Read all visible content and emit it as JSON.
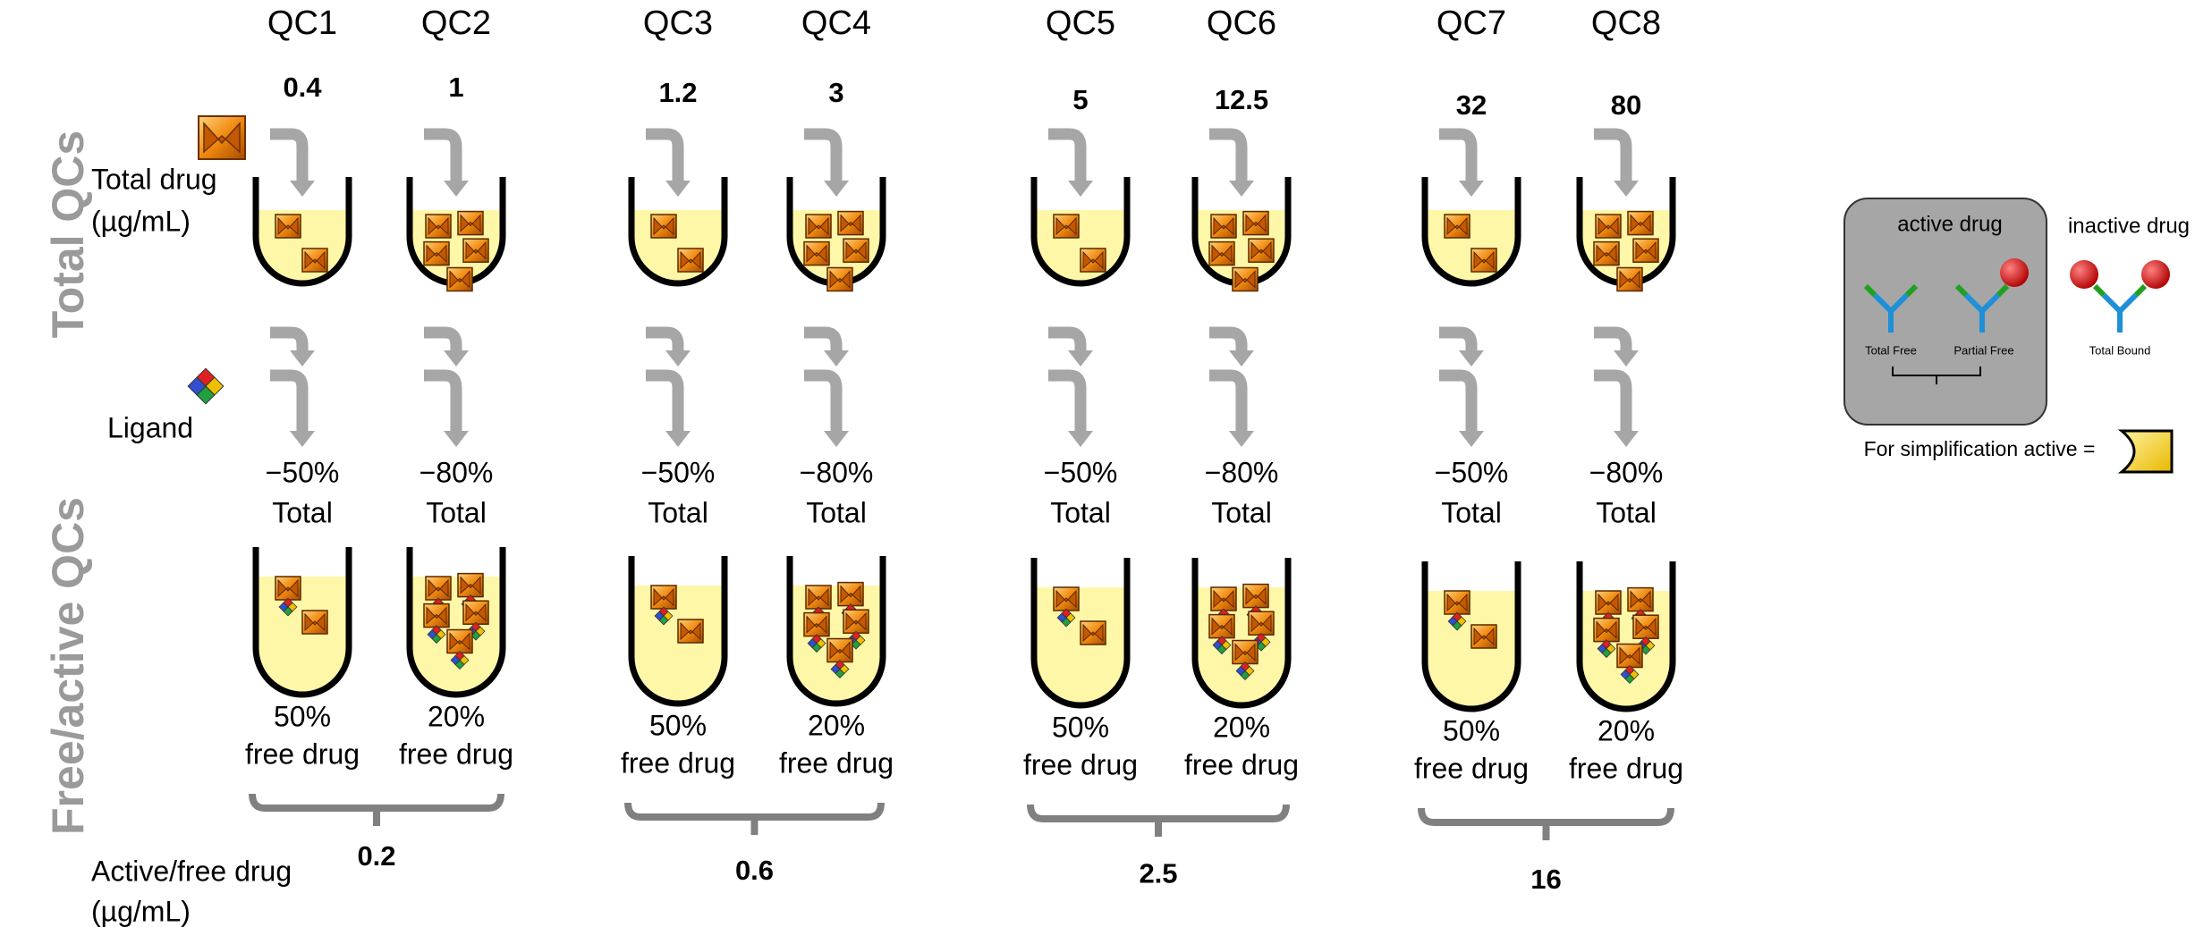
{
  "side_labels": {
    "total": "Total QCs",
    "free": "Free/active QCs"
  },
  "row_labels": {
    "total_drug": [
      "Total drug",
      "(µg/mL)"
    ],
    "ligand": "Ligand",
    "active_drug": [
      "Active/free drug",
      "(µg/mL)"
    ]
  },
  "qcs": [
    {
      "name": "QC1",
      "total": 0.4,
      "reduction": "−50%",
      "reduction_label": "Total",
      "free": "50%",
      "free_label": "free drug"
    },
    {
      "name": "QC2",
      "total": 1,
      "reduction": "−80%",
      "reduction_label": "Total",
      "free": "20%",
      "free_label": "free drug"
    },
    {
      "name": "QC3",
      "total": 1.2,
      "reduction": "−50%",
      "reduction_label": "Total",
      "free": "50%",
      "free_label": "free drug"
    },
    {
      "name": "QC4",
      "total": 3,
      "reduction": "−80%",
      "reduction_label": "Total",
      "free": "20%",
      "free_label": "free drug"
    },
    {
      "name": "QC5",
      "total": 5,
      "reduction": "−50%",
      "reduction_label": "Total",
      "free": "50%",
      "free_label": "free drug"
    },
    {
      "name": "QC6",
      "total": 12.5,
      "reduction": "−80%",
      "reduction_label": "Total",
      "free": "20%",
      "free_label": "free drug"
    },
    {
      "name": "QC7",
      "total": 32,
      "reduction": "−50%",
      "reduction_label": "Total",
      "free": "50%",
      "free_label": "free drug"
    },
    {
      "name": "QC8",
      "total": 80,
      "reduction": "−80%",
      "reduction_label": "Total",
      "free": "20%",
      "free_label": "free drug"
    }
  ],
  "pairs": [
    {
      "active": 0.2
    },
    {
      "active": 0.6
    },
    {
      "active": 2.5
    },
    {
      "active": 16
    }
  ],
  "legend": {
    "active": "active drug",
    "inactive": "inactive drug",
    "total_free": "Total Free",
    "partial_free": "Partial Free",
    "total_bound": "Total Bound",
    "simplification": "For simplification active ="
  }
}
